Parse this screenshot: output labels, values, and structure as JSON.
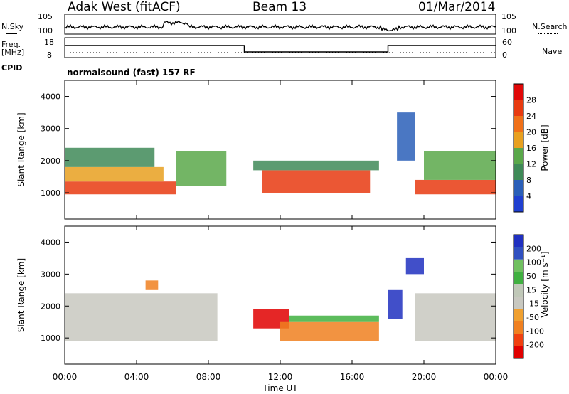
{
  "header": {
    "radar": "Adak West (fitACF)",
    "beam": "Beam 13",
    "date": "01/Mar/2014"
  },
  "strip": {
    "nsky_label": "N.Sky",
    "nsearch_label": "N.Search",
    "nsky_ticks": [
      "10^5",
      "10^0"
    ],
    "nsearch_ticks": [
      "10^5",
      "10^0"
    ],
    "freq_label_1": "Freq.",
    "freq_label_2": "[MHz]",
    "freq_ticks": [
      "18",
      "8"
    ],
    "nave_ticks": [
      "60",
      "0"
    ],
    "nave_label": "Nave",
    "cpid_label": "CPID",
    "mode_text": "normalsound (fast) 157 RF"
  },
  "colors": {
    "power": [
      "#1f3fd0",
      "#2a5fb8",
      "#3f8a58",
      "#5aa84a",
      "#e8a020",
      "#f07018",
      "#e83a10",
      "#e00808"
    ],
    "velocity": [
      "#e00000",
      "#f04010",
      "#f08020",
      "#f0a030",
      "#c8c8c0",
      "#c0c8b8",
      "#40b040",
      "#70c060",
      "#3050c0",
      "#2030c0"
    ],
    "ground": "#c8c8c0"
  },
  "chart_data": [
    {
      "type": "heatmap",
      "title": "Power",
      "ylabel": "Slant Range [km]",
      "xlabel": "",
      "x_ticks": [
        "00:00",
        "04:00",
        "08:00",
        "12:00",
        "16:00",
        "20:00",
        "00:00"
      ],
      "x_range_hours": [
        0,
        24
      ],
      "y_ticks": [
        1000,
        2000,
        3000,
        4000
      ],
      "ylim": [
        180,
        4500
      ],
      "colorbar": {
        "label": "Power [dB]",
        "ticks": [
          4,
          8,
          12,
          16,
          20,
          24,
          28
        ]
      },
      "bands": [
        {
          "t0": 0.0,
          "t1": 6.2,
          "r0": 950,
          "r1": 1350,
          "value": 28
        },
        {
          "t0": 0.0,
          "t1": 5.5,
          "r0": 1350,
          "r1": 1800,
          "value": 20
        },
        {
          "t0": 0.0,
          "t1": 5.0,
          "r0": 1800,
          "r1": 2400,
          "value": 12
        },
        {
          "t0": 6.2,
          "t1": 9.0,
          "r0": 1200,
          "r1": 2300,
          "value": 14
        },
        {
          "t0": 11.0,
          "t1": 17.0,
          "r0": 1000,
          "r1": 1700,
          "value": 28
        },
        {
          "t0": 10.5,
          "t1": 17.5,
          "r0": 1700,
          "r1": 2000,
          "value": 12
        },
        {
          "t0": 19.5,
          "t1": 24.0,
          "r0": 950,
          "r1": 1400,
          "value": 28
        },
        {
          "t0": 20.0,
          "t1": 24.0,
          "r0": 1400,
          "r1": 2300,
          "value": 16
        },
        {
          "t0": 18.5,
          "t1": 19.5,
          "r0": 2000,
          "r1": 3500,
          "value": 8
        }
      ]
    },
    {
      "type": "heatmap",
      "title": "Velocity",
      "ylabel": "Slant Range [km]",
      "xlabel": "Time UT",
      "x_ticks": [
        "00:00",
        "04:00",
        "08:00",
        "12:00",
        "16:00",
        "20:00",
        "00:00"
      ],
      "x_range_hours": [
        0,
        24
      ],
      "y_ticks": [
        1000,
        2000,
        3000,
        4000
      ],
      "ylim": [
        180,
        4500
      ],
      "colorbar": {
        "label": "Velocity [m s^-1]",
        "ticks": [
          200,
          100,
          50,
          15,
          -15,
          -50,
          -100,
          -200
        ]
      },
      "bands": [
        {
          "t0": 0.0,
          "t1": 8.5,
          "r0": 900,
          "r1": 2400,
          "value": 0
        },
        {
          "t0": 4.5,
          "t1": 5.2,
          "r0": 2500,
          "r1": 2800,
          "value": -60
        },
        {
          "t0": 10.5,
          "t1": 12.5,
          "r0": 1300,
          "r1": 1900,
          "value": -200
        },
        {
          "t0": 12.0,
          "t1": 17.5,
          "r0": 900,
          "r1": 1500,
          "value": -60
        },
        {
          "t0": 12.5,
          "t1": 17.5,
          "r0": 1500,
          "r1": 1700,
          "value": 50
        },
        {
          "t0": 18.0,
          "t1": 18.8,
          "r0": 1600,
          "r1": 2500,
          "value": 200
        },
        {
          "t0": 19.5,
          "t1": 24.0,
          "r0": 900,
          "r1": 2400,
          "value": 0
        },
        {
          "t0": 19.0,
          "t1": 20.0,
          "r0": 3000,
          "r1": 3500,
          "value": 200
        }
      ]
    }
  ]
}
